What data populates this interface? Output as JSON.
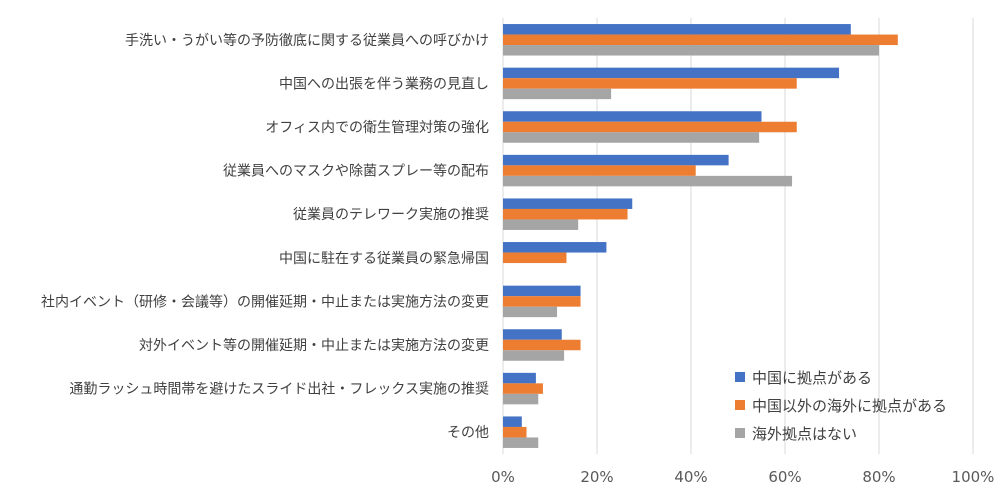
{
  "chart_data": {
    "type": "bar",
    "orientation": "horizontal",
    "categories": [
      "手洗い・うがい等の予防徹底に関する従業員への呼びかけ",
      "中国への出張を伴う業務の見直し",
      "オフィス内での衛生管理対策の強化",
      "従業員へのマスクや除菌スプレー等の配布",
      "従業員のテレワーク実施の推奨",
      "中国に駐在する従業員の緊急帰国",
      "社内イベント（研修・会議等）の開催延期・中止または実施方法の変更",
      "対外イベント等の開催延期・中止または実施方法の変更",
      "通勤ラッシュ時間帯を避けたスライド出社・フレックス実施の推奨",
      "その他"
    ],
    "series": [
      {
        "name": "中国に拠点がある",
        "color": "#4472C4",
        "values": [
          74,
          71.5,
          55,
          48,
          27.5,
          22,
          16.5,
          12.5,
          7,
          4
        ]
      },
      {
        "name": "中国以外の海外に拠点がある",
        "color": "#ED7D31",
        "values": [
          84,
          62.5,
          62.5,
          41,
          26.5,
          13.5,
          16.5,
          16.5,
          8.5,
          5
        ]
      },
      {
        "name": "海外拠点はない",
        "color": "#A5A5A5",
        "values": [
          80,
          23,
          54.5,
          61.5,
          16,
          0,
          11.5,
          13,
          7.5,
          7.5
        ]
      }
    ],
    "xlim": [
      0,
      100
    ],
    "xticks": [
      "0%",
      "20%",
      "40%",
      "60%",
      "80%",
      "100%"
    ],
    "grid": true,
    "legend_position": "bottom-right"
  }
}
